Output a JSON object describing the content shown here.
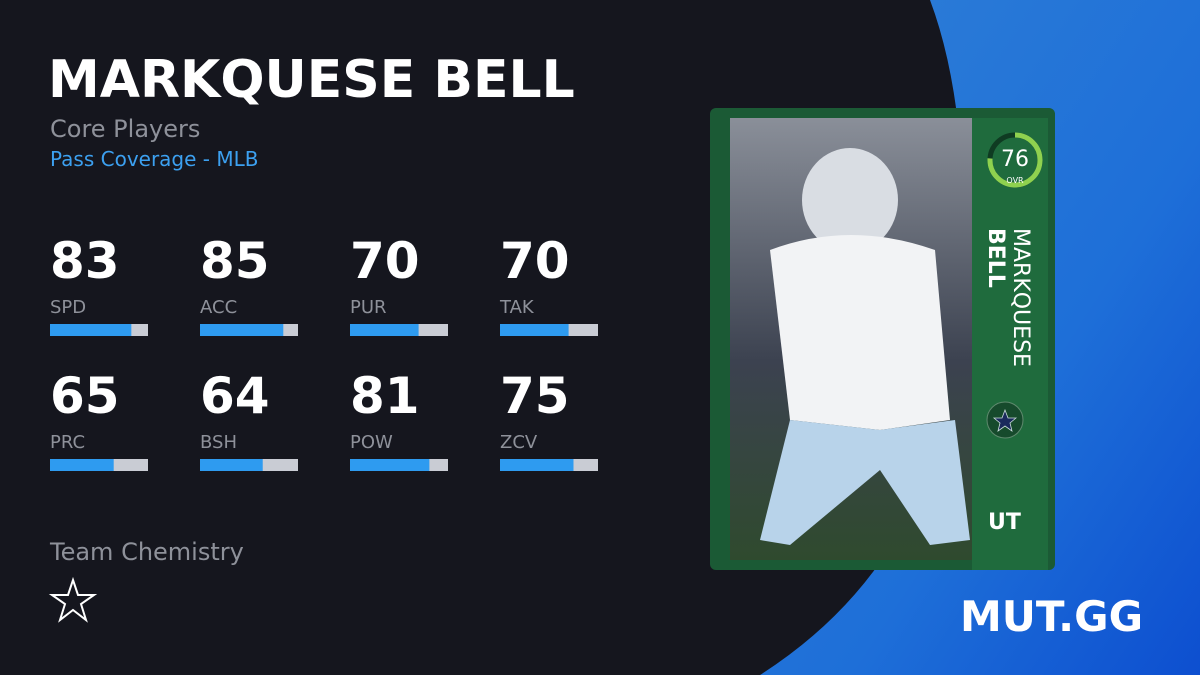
{
  "header": {
    "title": "MARKQUESE BELL",
    "subtitle": "Core Players",
    "position": "Pass Coverage - MLB"
  },
  "stats": [
    {
      "value": 83,
      "label": "SPD"
    },
    {
      "value": 85,
      "label": "ACC"
    },
    {
      "value": 70,
      "label": "PUR"
    },
    {
      "value": 70,
      "label": "TAK"
    },
    {
      "value": 65,
      "label": "PRC"
    },
    {
      "value": 64,
      "label": "BSH"
    },
    {
      "value": 81,
      "label": "POW"
    },
    {
      "value": 75,
      "label": "ZCV"
    }
  ],
  "chemistry": {
    "title": "Team Chemistry"
  },
  "card": {
    "ovr": 76,
    "ovr_label": "OVR",
    "first_name": "MARKQUESE",
    "last_name": "BELL",
    "program": "UT"
  },
  "brand": "MUT.GG"
}
